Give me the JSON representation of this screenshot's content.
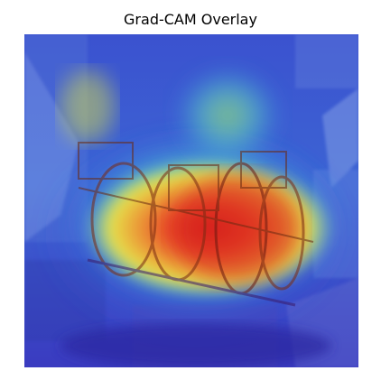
{
  "figure": {
    "title": "Grad-CAM Overlay"
  },
  "overlay": {
    "subject": "machinery-engine",
    "colormap": "jet",
    "colors": {
      "low": "#2b3bd1",
      "low_mid": "#3aa0e8",
      "mid": "#57d6c8",
      "mid_high": "#e6e04a",
      "high": "#e23a2a",
      "peak": "#c81e1e"
    }
  }
}
